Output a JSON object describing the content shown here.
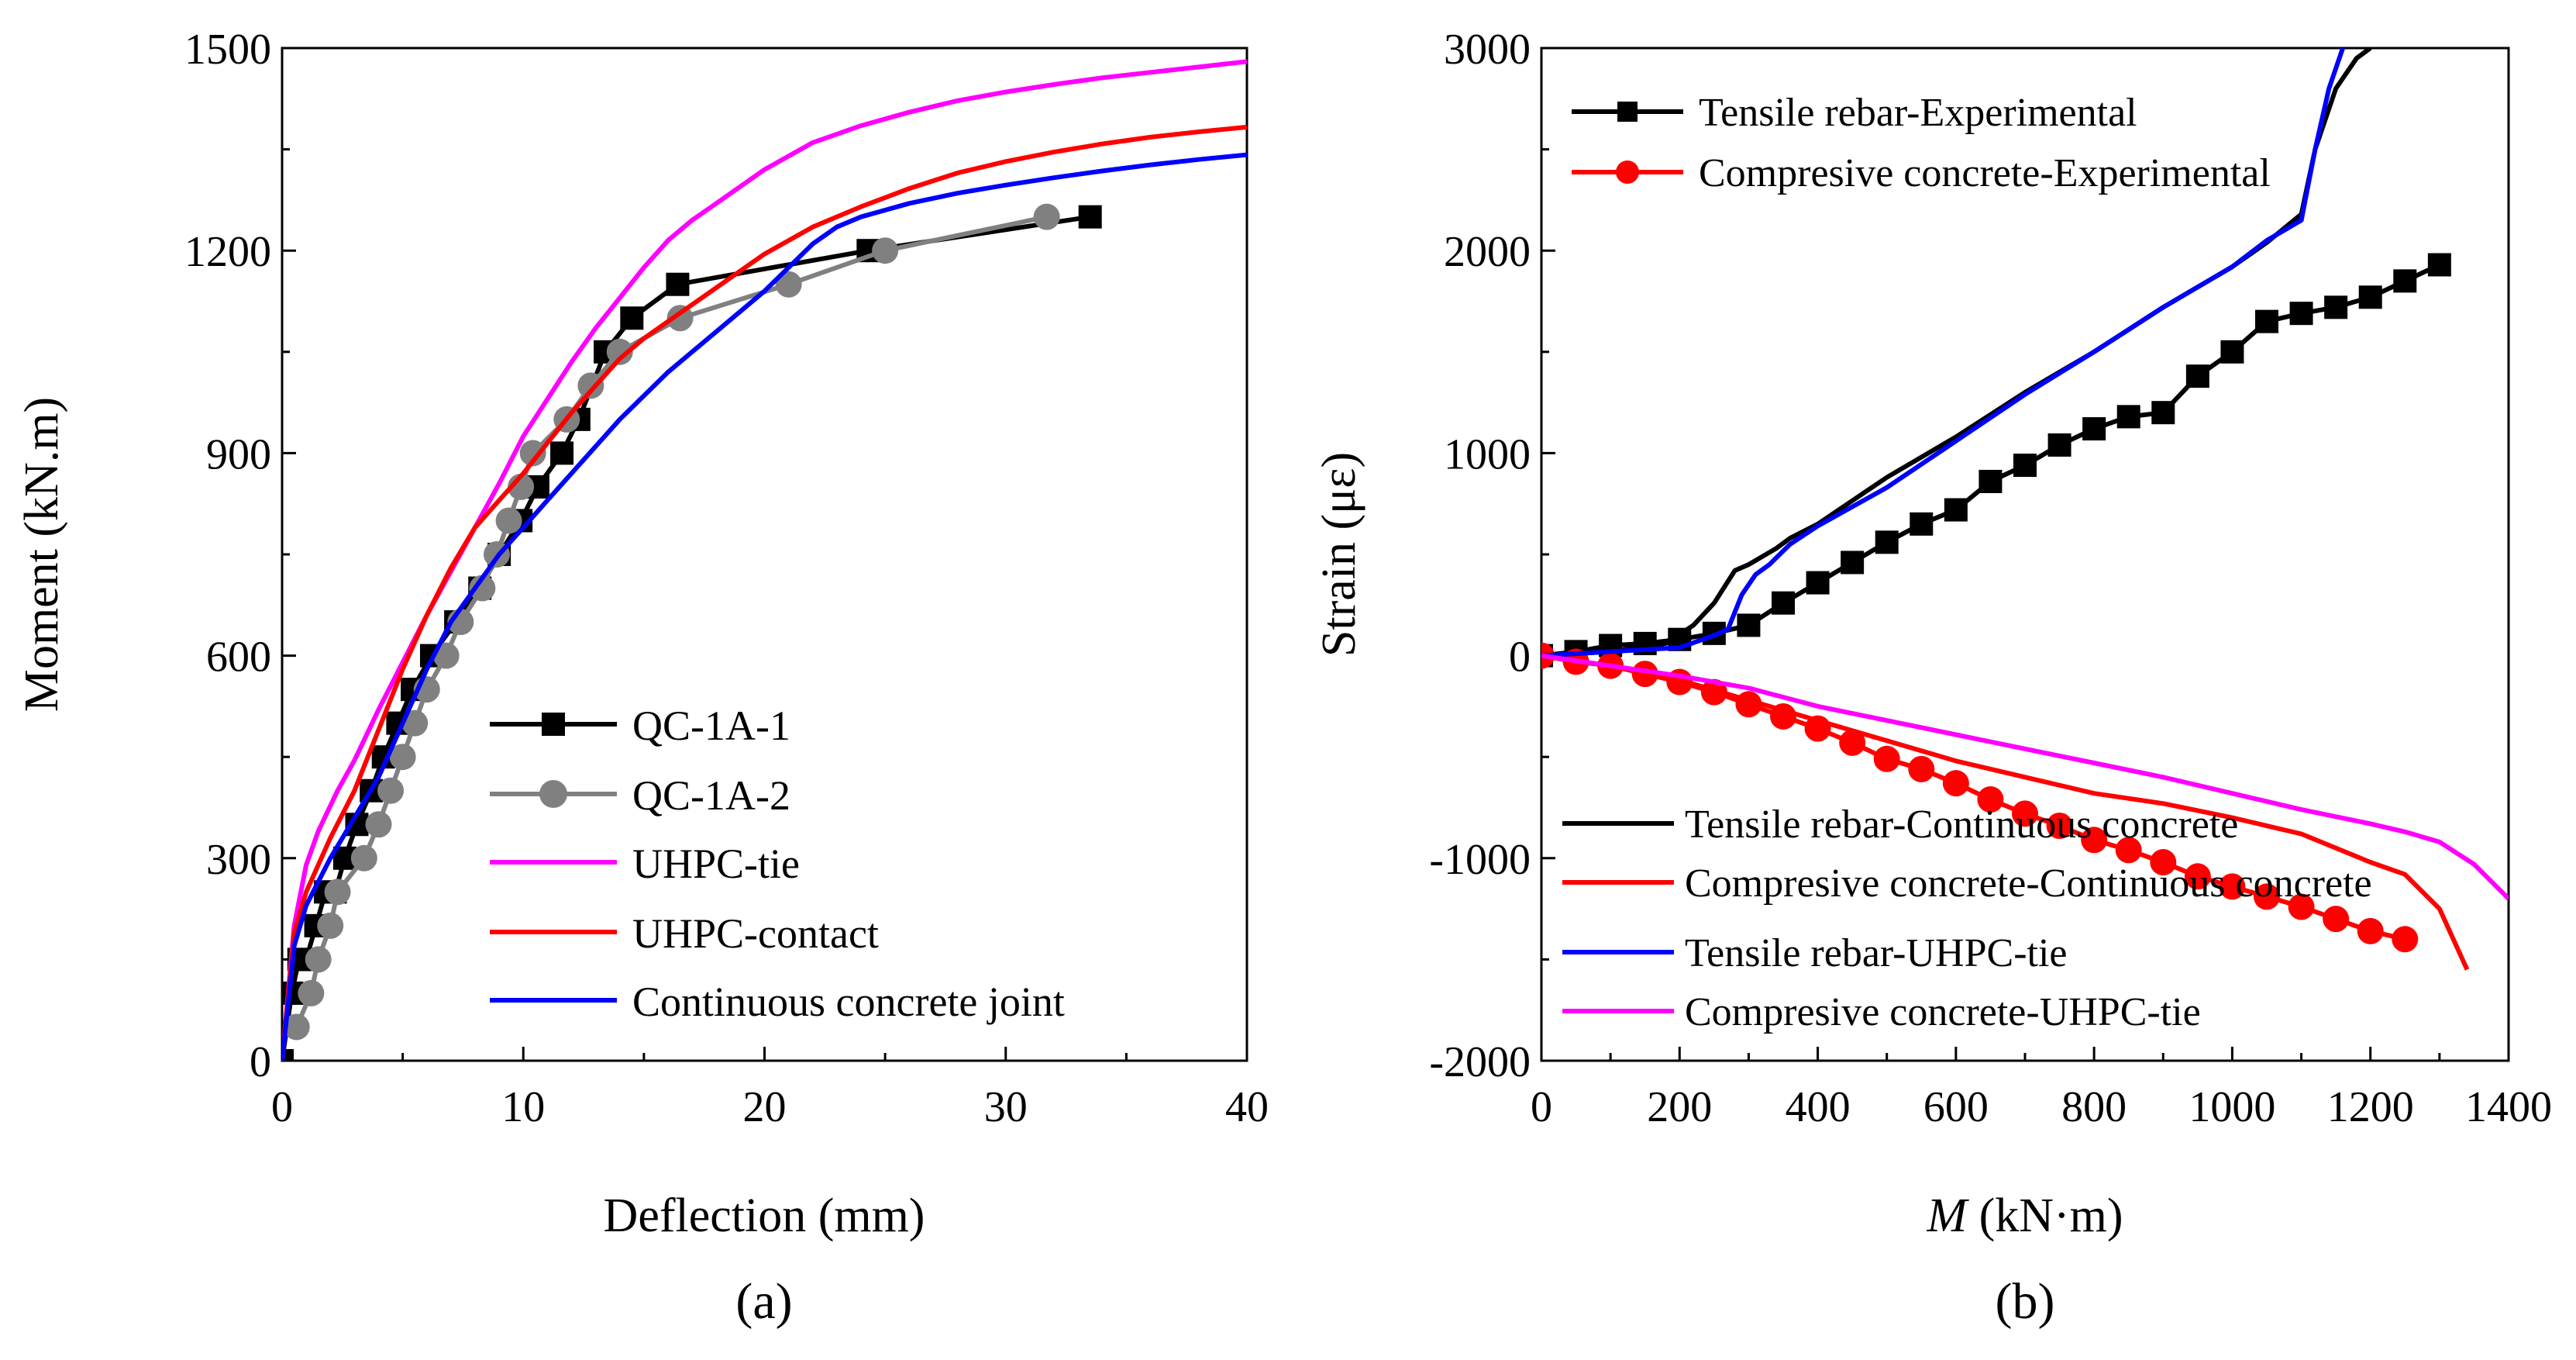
{
  "chart_data": [
    {
      "panel_label": "(a)",
      "type": "line",
      "xlabel": "Deflection (mm)",
      "ylabel": "Moment (kN.m)",
      "xlim": [
        0,
        40
      ],
      "ylim": [
        0,
        1500
      ],
      "xticks": [
        "0",
        "10",
        "20",
        "30",
        "40"
      ],
      "yticks": [
        "0",
        "300",
        "600",
        "900",
        "1200",
        "1500"
      ],
      "legend_position": "bottom-right",
      "series": [
        {
          "name": "QC-1A-1",
          "color": "#000000",
          "marker": "square",
          "x": [
            0,
            0.4,
            0.7,
            1.0,
            1.4,
            1.8,
            2.2,
            2.6,
            3.1,
            3.7,
            4.2,
            4.8,
            5.4,
            6.2,
            7.2,
            8.2,
            9.0,
            9.9,
            10.6,
            11.6,
            12.3,
            13.4,
            14.5,
            16.4,
            24.3,
            33.5
          ],
          "y": [
            0,
            100,
            150,
            150,
            200,
            250,
            250,
            300,
            350,
            400,
            450,
            500,
            550,
            600,
            650,
            700,
            750,
            800,
            850,
            900,
            950,
            1050,
            1100,
            1150,
            1200,
            1250
          ]
        },
        {
          "name": "QC-1A-2",
          "color": "#808080",
          "marker": "circle",
          "x": [
            0.6,
            1.2,
            1.5,
            2.0,
            2.3,
            3.4,
            4.0,
            4.5,
            5.0,
            5.5,
            6.0,
            6.8,
            7.4,
            8.3,
            8.9,
            9.4,
            9.9,
            10.4,
            11.8,
            12.8,
            14.0,
            16.5,
            21.0,
            25.0,
            31.7
          ],
          "y": [
            50,
            100,
            150,
            200,
            250,
            300,
            350,
            400,
            450,
            500,
            550,
            600,
            650,
            700,
            750,
            800,
            850,
            900,
            950,
            1000,
            1050,
            1100,
            1150,
            1200,
            1250
          ]
        },
        {
          "name": "UHPC-tie",
          "color": "#ff00ff",
          "marker": "none",
          "x": [
            0,
            0.5,
            1,
            1.5,
            2.3,
            3,
            4,
            5,
            6,
            7,
            8,
            9,
            10,
            11,
            12,
            13,
            14,
            15,
            16,
            17,
            18,
            20,
            22,
            24,
            26,
            28,
            30,
            32,
            34,
            36,
            38,
            40
          ],
          "y": [
            0,
            200,
            290,
            340,
            400,
            445,
            520,
            590,
            660,
            725,
            790,
            855,
            925,
            980,
            1035,
            1085,
            1130,
            1175,
            1215,
            1245,
            1270,
            1320,
            1360,
            1385,
            1405,
            1422,
            1435,
            1446,
            1456,
            1464,
            1472,
            1480
          ]
        },
        {
          "name": "UHPC-contact",
          "color": "#ff0000",
          "marker": "none",
          "x": [
            0,
            0.5,
            1,
            2,
            3,
            4,
            5,
            6,
            7,
            8,
            9,
            10,
            11,
            12,
            13,
            14,
            15,
            16,
            17,
            18,
            19,
            20,
            22,
            24,
            26,
            28,
            30,
            32,
            34,
            36,
            38,
            40
          ],
          "y": [
            0,
            190,
            250,
            330,
            400,
            490,
            580,
            660,
            730,
            790,
            830,
            870,
            915,
            960,
            1000,
            1040,
            1070,
            1095,
            1120,
            1145,
            1170,
            1195,
            1235,
            1265,
            1292,
            1315,
            1332,
            1346,
            1358,
            1368,
            1376,
            1383
          ]
        },
        {
          "name": "Continuous concrete joint",
          "color": "#0000ff",
          "marker": "none",
          "x": [
            0,
            0.5,
            1,
            2,
            3,
            4,
            5,
            6,
            7,
            8,
            9,
            10,
            11,
            12,
            13,
            14,
            15,
            16,
            17,
            18,
            19,
            20,
            21,
            22,
            23,
            24,
            26,
            28,
            30,
            32,
            34,
            36,
            38,
            40
          ],
          "y": [
            0,
            170,
            230,
            300,
            360,
            420,
            500,
            580,
            650,
            700,
            750,
            790,
            830,
            870,
            910,
            950,
            985,
            1020,
            1050,
            1080,
            1110,
            1140,
            1175,
            1210,
            1235,
            1250,
            1270,
            1285,
            1297,
            1308,
            1318,
            1327,
            1335,
            1342
          ]
        }
      ]
    },
    {
      "panel_label": "(b)",
      "type": "line",
      "xlabel_var": "M",
      "xlabel_unit": " (kN·m)",
      "ylabel": "Strain (με)",
      "xlim": [
        0,
        1400
      ],
      "ylim": [
        -2000,
        3000
      ],
      "xticks": [
        "0",
        "200",
        "400",
        "600",
        "800",
        "1000",
        "1200",
        "1400"
      ],
      "yticks": [
        "-2000",
        "-1000",
        "0",
        "1000",
        "2000",
        "3000"
      ],
      "legend_positions": [
        "top-left",
        "bottom"
      ],
      "series": [
        {
          "name": "Tensile rebar-Experimental",
          "color": "#000000",
          "marker": "square",
          "x": [
            0,
            50,
            100,
            150,
            200,
            250,
            300,
            350,
            400,
            450,
            500,
            550,
            600,
            650,
            700,
            750,
            800,
            850,
            900,
            950,
            1000,
            1050,
            1100,
            1150,
            1200,
            1250,
            1300
          ],
          "y": [
            0,
            20,
            50,
            60,
            80,
            110,
            150,
            260,
            360,
            460,
            560,
            650,
            720,
            860,
            940,
            1040,
            1120,
            1180,
            1200,
            1380,
            1500,
            1650,
            1690,
            1720,
            1770,
            1850,
            1930
          ]
        },
        {
          "name": "Compresive concrete-Experimental",
          "color": "#ff0000",
          "marker": "circle",
          "x": [
            0,
            50,
            100,
            150,
            200,
            250,
            300,
            350,
            400,
            450,
            500,
            550,
            600,
            650,
            700,
            750,
            800,
            850,
            900,
            950,
            1000,
            1050,
            1100,
            1150,
            1200,
            1250
          ],
          "y": [
            0,
            -30,
            -50,
            -90,
            -130,
            -180,
            -240,
            -300,
            -360,
            -430,
            -510,
            -560,
            -630,
            -710,
            -780,
            -840,
            -910,
            -960,
            -1020,
            -1090,
            -1140,
            -1190,
            -1240,
            -1300,
            -1360,
            -1400
          ]
        },
        {
          "name": "Tensile rebar-Continuous concrete",
          "color": "#000000",
          "marker": "none",
          "x": [
            0,
            100,
            180,
            220,
            250,
            280,
            300,
            340,
            360,
            400,
            500,
            600,
            700,
            800,
            900,
            1000,
            1050,
            1100,
            1120,
            1150,
            1180,
            1200
          ],
          "y": [
            0,
            20,
            60,
            150,
            260,
            420,
            450,
            530,
            580,
            650,
            880,
            1080,
            1300,
            1500,
            1720,
            1920,
            2040,
            2180,
            2500,
            2800,
            2950,
            3000
          ]
        },
        {
          "name": "Compresive concrete-Continuous concrete",
          "color": "#ff0000",
          "marker": "none",
          "x": [
            0,
            100,
            200,
            300,
            400,
            500,
            600,
            700,
            800,
            900,
            1000,
            1100,
            1200,
            1250,
            1300,
            1340
          ],
          "y": [
            0,
            -50,
            -120,
            -220,
            -320,
            -420,
            -520,
            -600,
            -680,
            -730,
            -800,
            -880,
            -1020,
            -1080,
            -1250,
            -1550
          ]
        },
        {
          "name": "Tensile rebar-UHPC-tie",
          "color": "#0000ff",
          "marker": "none",
          "x": [
            0,
            100,
            200,
            250,
            270,
            290,
            310,
            330,
            360,
            400,
            500,
            600,
            700,
            800,
            900,
            1000,
            1050,
            1100,
            1120,
            1140,
            1160
          ],
          "y": [
            0,
            20,
            40,
            100,
            130,
            300,
            400,
            450,
            550,
            640,
            830,
            1060,
            1290,
            1500,
            1720,
            1920,
            2050,
            2150,
            2500,
            2800,
            3000
          ]
        },
        {
          "name": "Compresive concrete-UHPC-tie",
          "color": "#ff00ff",
          "marker": "none",
          "x": [
            0,
            100,
            200,
            300,
            400,
            500,
            600,
            700,
            800,
            900,
            1000,
            1100,
            1200,
            1250,
            1300,
            1350,
            1400
          ],
          "y": [
            0,
            -50,
            -100,
            -160,
            -250,
            -320,
            -390,
            -460,
            -530,
            -600,
            -680,
            -760,
            -830,
            -870,
            -920,
            -1030,
            -1200
          ]
        }
      ]
    }
  ]
}
